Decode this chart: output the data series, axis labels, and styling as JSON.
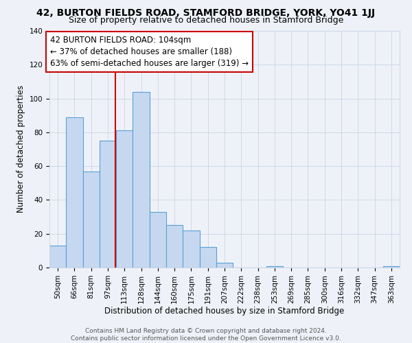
{
  "title": "42, BURTON FIELDS ROAD, STAMFORD BRIDGE, YORK, YO41 1JJ",
  "subtitle": "Size of property relative to detached houses in Stamford Bridge",
  "xlabel": "Distribution of detached houses by size in Stamford Bridge",
  "ylabel": "Number of detached properties",
  "bin_labels": [
    "50sqm",
    "66sqm",
    "81sqm",
    "97sqm",
    "113sqm",
    "128sqm",
    "144sqm",
    "160sqm",
    "175sqm",
    "191sqm",
    "207sqm",
    "222sqm",
    "238sqm",
    "253sqm",
    "269sqm",
    "285sqm",
    "300sqm",
    "316sqm",
    "332sqm",
    "347sqm",
    "363sqm"
  ],
  "bar_values": [
    13,
    89,
    57,
    75,
    81,
    104,
    33,
    25,
    22,
    12,
    3,
    0,
    0,
    1,
    0,
    0,
    0,
    0,
    0,
    0,
    1
  ],
  "bar_color": "#c5d8f0",
  "bar_edge_color": "#5a9fd4",
  "vline_sqm": 104,
  "vline_color": "#cc0000",
  "annotation_text": "42 BURTON FIELDS ROAD: 104sqm\n← 37% of detached houses are smaller (188)\n63% of semi-detached houses are larger (319) →",
  "annotation_box_color": "#ffffff",
  "annotation_box_edge": "#cc0000",
  "ylim": [
    0,
    140
  ],
  "yticks": [
    0,
    20,
    40,
    60,
    80,
    100,
    120,
    140
  ],
  "grid_color": "#d0d8e8",
  "background_color": "#eef2f8",
  "footer_line1": "Contains HM Land Registry data © Crown copyright and database right 2024.",
  "footer_line2": "Contains public sector information licensed under the Open Government Licence v3.0.",
  "title_fontsize": 10,
  "subtitle_fontsize": 9,
  "axis_label_fontsize": 8.5,
  "tick_fontsize": 7.5,
  "annotation_fontsize": 8.5,
  "footer_fontsize": 6.5
}
